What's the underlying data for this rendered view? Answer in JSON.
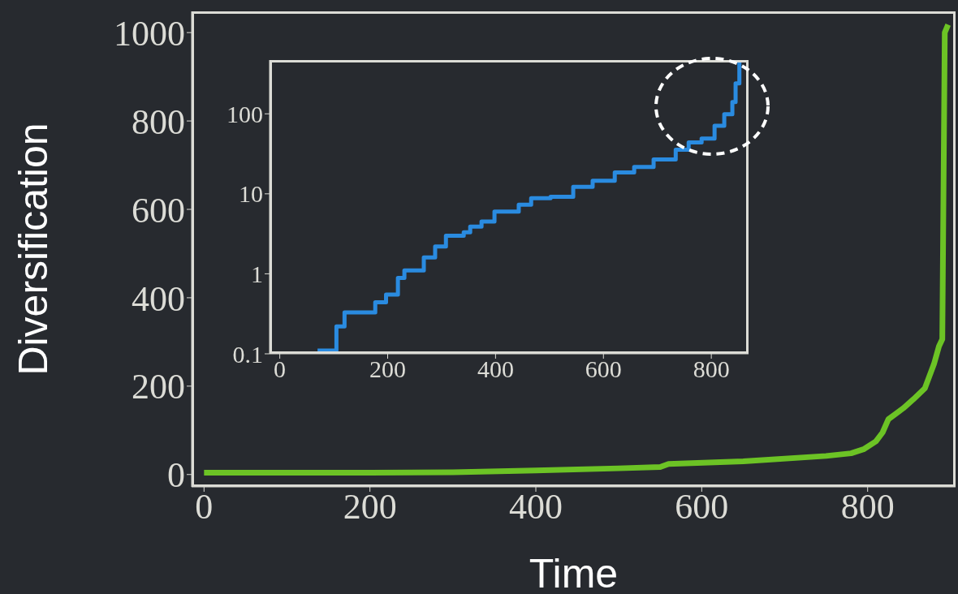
{
  "chart_data": [
    {
      "type": "line",
      "xlabel": "Time",
      "ylabel": "Diversification",
      "color": "#6cc325",
      "xlim": [
        -15,
        906
      ],
      "ylim": [
        -28,
        1048
      ],
      "xticks": [
        0,
        200,
        400,
        600,
        800
      ],
      "yticks": [
        0,
        200,
        400,
        600,
        800,
        1000
      ],
      "x": [
        0,
        200,
        300,
        400,
        500,
        550,
        560,
        650,
        750,
        780,
        795,
        810,
        818,
        825,
        843,
        855,
        869,
        880,
        886,
        890,
        893,
        897
      ],
      "values": [
        4,
        4,
        5,
        9,
        14,
        17,
        24,
        30,
        42,
        48,
        57,
        75,
        95,
        125,
        150,
        170,
        195,
        250,
        290,
        306,
        1000,
        1018
      ]
    },
    {
      "type": "step",
      "log": "y",
      "color": "#2a8be0",
      "xlim": [
        -19,
        869
      ],
      "ylim": [
        0.1,
        470
      ],
      "xticks": [
        0,
        200,
        400,
        600,
        800
      ],
      "yticks": [
        0.1,
        1,
        10,
        100
      ],
      "x": [
        70,
        105,
        120,
        177,
        197,
        219,
        231,
        267,
        288,
        308,
        341,
        353,
        374,
        398,
        443,
        466,
        502,
        544,
        580,
        621,
        657,
        693,
        734,
        758,
        782,
        806,
        824,
        839,
        845,
        852
      ],
      "values": [
        0.11,
        0.22,
        0.33,
        0.44,
        0.55,
        0.89,
        1.1,
        1.6,
        2.2,
        3.0,
        3.3,
        3.9,
        4.5,
        6.0,
        7.3,
        8.8,
        9.2,
        12.2,
        14.6,
        18.5,
        21.7,
        26.9,
        35.5,
        44,
        49,
        71,
        99,
        140,
        240,
        453
      ]
    }
  ]
}
